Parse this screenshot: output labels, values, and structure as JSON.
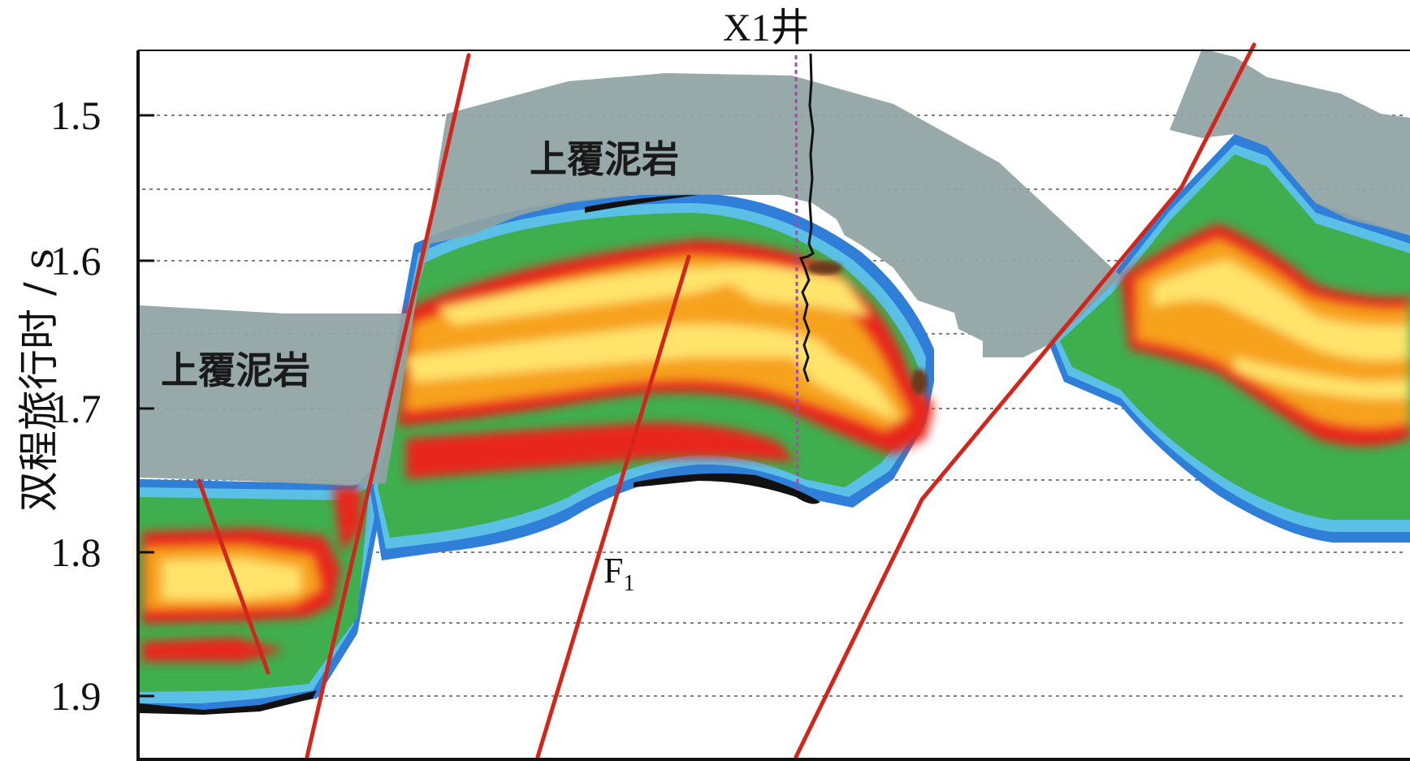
{
  "title": "X1井",
  "y_axis": {
    "label": "双程旅行时 / s",
    "ticks": [
      "1.5",
      "1.6",
      "1.7",
      "1.8",
      "1.9"
    ]
  },
  "regions": {
    "cap_mudstone_left": "上覆泥岩",
    "cap_mudstone_center": "上覆泥岩"
  },
  "fault": {
    "name": "F",
    "subscript": "1"
  },
  "colors": {
    "cap_mudstone": "#8fa3a3",
    "fault_line": "#d2261c",
    "well_trace": "#111111",
    "well_marker": "#a64ca6",
    "amplitude_high": "#ffe36a",
    "amplitude_mid": "#e8261c",
    "amplitude_low": "#33a84a",
    "amplitude_edge": "#2f7fd8"
  }
}
